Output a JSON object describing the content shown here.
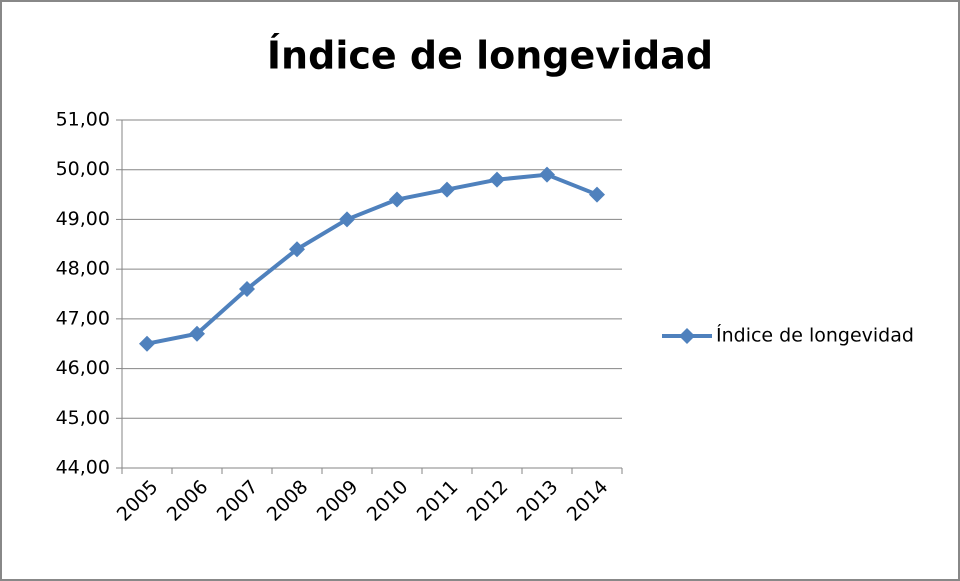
{
  "chart_data": {
    "type": "line",
    "title": "Índice de longevidad",
    "categories": [
      "2005",
      "2006",
      "2007",
      "2008",
      "2009",
      "2010",
      "2011",
      "2012",
      "2013",
      "2014"
    ],
    "series": [
      {
        "name": "Índice de longevidad",
        "color": "#4f81bd",
        "values": [
          46.5,
          46.7,
          47.6,
          48.4,
          49.0,
          49.4,
          49.6,
          49.8,
          49.9,
          49.5
        ]
      }
    ],
    "ylim": [
      44,
      51
    ],
    "yticks": [
      {
        "value": 44,
        "label": "44,00"
      },
      {
        "value": 45,
        "label": "45,00"
      },
      {
        "value": 46,
        "label": "46,00"
      },
      {
        "value": 47,
        "label": "47,00"
      },
      {
        "value": 48,
        "label": "48,00"
      },
      {
        "value": 49,
        "label": "49,00"
      },
      {
        "value": 50,
        "label": "50,00"
      },
      {
        "value": 51,
        "label": "51,00"
      }
    ],
    "grid": true,
    "legend": "right"
  }
}
